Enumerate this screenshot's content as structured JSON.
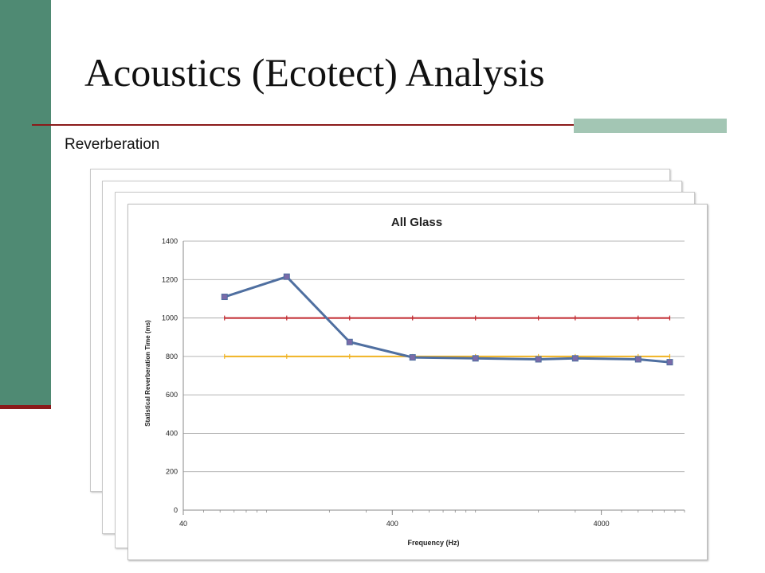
{
  "slide": {
    "title": "Acoustics (Ecotect) Analysis",
    "subtitle": "Reverberation"
  },
  "colors": {
    "sidebar": "#4f8a73",
    "rule": "#8b1a1a",
    "rule_accent": "#a3c6b4",
    "series_line": "#4f6fa0",
    "marker_fill": "#7a6aa8",
    "upper_limit": "#c0272d",
    "lower_limit": "#f0b323"
  },
  "chart_data": {
    "type": "line",
    "title": "All Glass",
    "xlabel": "Frequency (Hz)",
    "ylabel": "Statistical Reverberation Time (ms)",
    "x_scale": "log",
    "xlim": [
      40,
      10000
    ],
    "ylim": [
      0,
      1400
    ],
    "x_ticks": [
      40,
      400,
      4000
    ],
    "x_tick_labels": [
      "40",
      "400",
      "4000"
    ],
    "y_ticks": [
      0,
      200,
      400,
      600,
      800,
      1000,
      1200,
      1400
    ],
    "y_tick_labels": [
      "0",
      "200",
      "400",
      "600",
      "800",
      "1000",
      "1200",
      "1400"
    ],
    "grid": "horizontal",
    "legend": "none",
    "series": [
      {
        "x": [
          63,
          125,
          250,
          500,
          1000,
          2000,
          3000,
          6000,
          8500
        ],
        "y": [
          1110,
          1215,
          875,
          795,
          790,
          785,
          790,
          785,
          770
        ]
      }
    ],
    "reference_lines": [
      {
        "y": 1000,
        "x_from": 63,
        "x_to": 8500
      },
      {
        "y": 800,
        "x_from": 63,
        "x_to": 8500
      }
    ]
  }
}
